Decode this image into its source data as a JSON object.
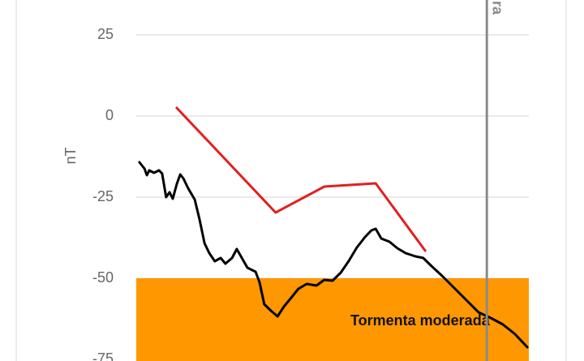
{
  "chart_data": {
    "type": "line",
    "y_label": "nT",
    "ylim": [
      -75.5,
      35.75
    ],
    "yticks": [
      25,
      0,
      -25,
      -50,
      -75
    ],
    "xlim": [
      0,
      100
    ],
    "grid": true,
    "band": {
      "label": "Tormenta moderada",
      "y_top": -50,
      "color": "#ff9800"
    },
    "marker_line": {
      "x": 89.3,
      "label": "ra",
      "color": "#8a8a8a"
    },
    "series": [
      {
        "color": "#e02020",
        "x": [
          10.3,
          35.5,
          47.9,
          61,
          73.6
        ],
        "values": [
          2.5,
          -29.75,
          -21.75,
          -20.75,
          -41.5
        ]
      },
      {
        "color": "#000000",
        "x": [
          0.8,
          2.1,
          2.7,
          3.3,
          4.5,
          5.8,
          6.6,
          7.6,
          8.5,
          9.3,
          10.3,
          11.2,
          12,
          13.2,
          14.9,
          16.1,
          17.4,
          18.6,
          20,
          21.5,
          22.7,
          24.4,
          25.6,
          26.9,
          28.3,
          30.4,
          31.4,
          32.6,
          34.3,
          36,
          37.6,
          39.3,
          41.3,
          43.4,
          45.9,
          47.9,
          50,
          52.1,
          54.1,
          56.2,
          58.3,
          59.9,
          61,
          62.4,
          64.5,
          66.5,
          68.6,
          71.1,
          73.1,
          75.2,
          77.9,
          81,
          84.1,
          87.2,
          90.3,
          93.4,
          96.5,
          99.6
        ],
        "values": [
          -14.25,
          -16.25,
          -18.25,
          -16.75,
          -17.5,
          -16.75,
          -17.75,
          -25,
          -23.5,
          -25.5,
          -21,
          -18,
          -19.25,
          -22.25,
          -25.75,
          -31.75,
          -39.25,
          -42.25,
          -44.75,
          -43.75,
          -45.5,
          -43.75,
          -41,
          -43.75,
          -46.75,
          -48,
          -51.25,
          -58,
          -60,
          -61.75,
          -58.75,
          -56.25,
          -53.25,
          -51.75,
          -52.25,
          -50.5,
          -50.75,
          -48.25,
          -44.75,
          -40.5,
          -37.25,
          -35.25,
          -34.75,
          -37.75,
          -38.75,
          -40.75,
          -42.25,
          -43.25,
          -43.75,
          -46.25,
          -49.25,
          -53,
          -56.75,
          -60.5,
          -62.25,
          -64.25,
          -67.25,
          -71.25
        ]
      }
    ]
  }
}
